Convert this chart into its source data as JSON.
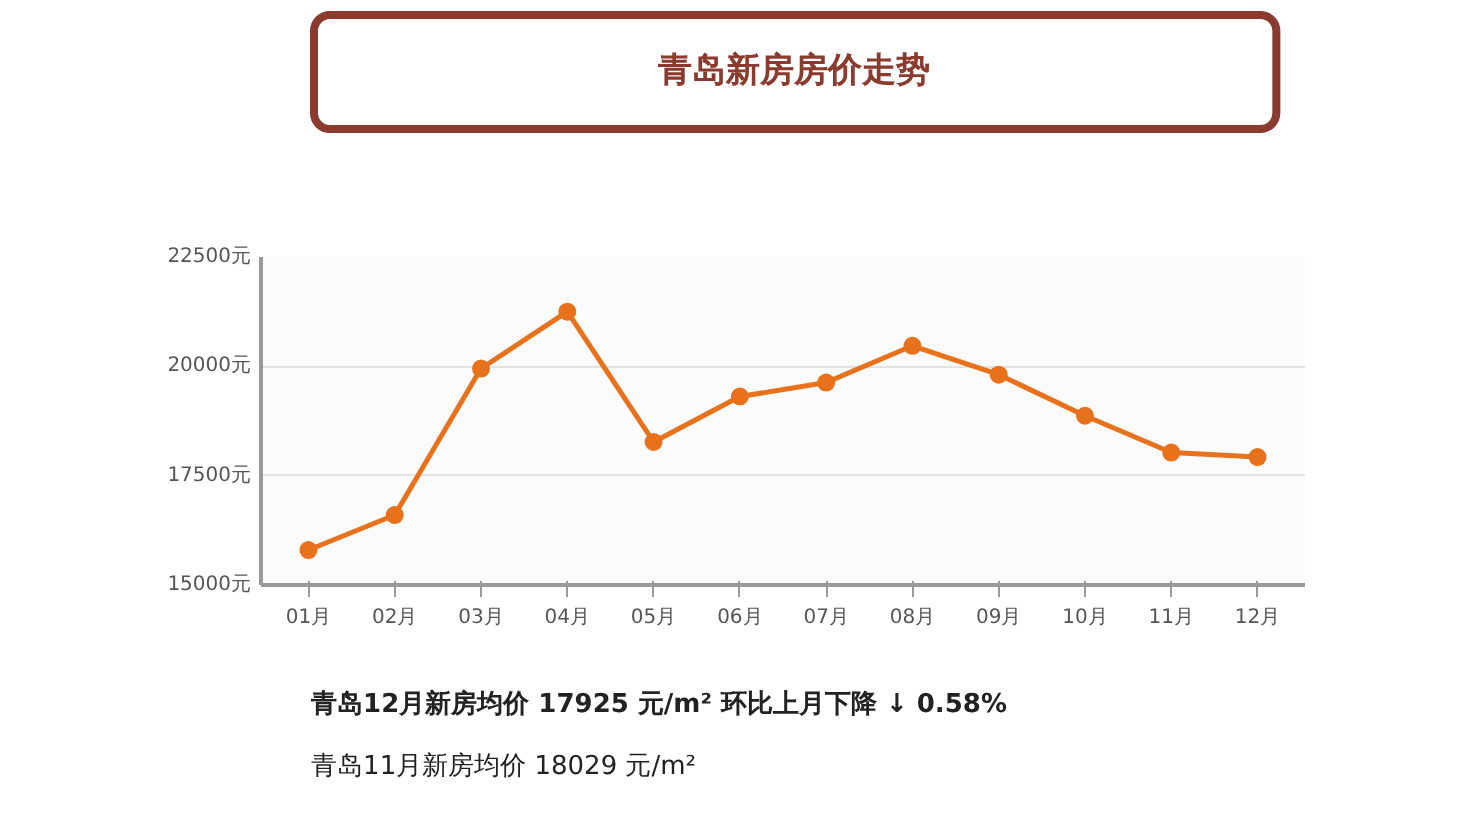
{
  "chart_data": {
    "type": "line",
    "title": "青岛新房房价走势",
    "categories": [
      "01月",
      "02月",
      "03月",
      "04月",
      "05月",
      "06月",
      "07月",
      "08月",
      "09月",
      "10月",
      "11月",
      "12月"
    ],
    "series": [
      {
        "color": "#e8711c",
        "values": [
          15800,
          16600,
          19950,
          21250,
          18270,
          19310,
          19630,
          20470,
          19810,
          18870,
          18029,
          17925
        ]
      }
    ],
    "ylim": [
      15000,
      22500
    ],
    "yticks": [
      {
        "value": 15000,
        "label": "15000元"
      },
      {
        "value": 17500,
        "label": "17500元"
      },
      {
        "value": 20000,
        "label": "20000元"
      },
      {
        "value": 22500,
        "label": "22500元"
      }
    ],
    "grid": "y",
    "marker": "circle",
    "line_style": "solid",
    "annotations": [
      "青岛12月新房均价 17925 元/m² 环比上月下降 ↓ 0.58%",
      "青岛11月新房均价 18029 元/m²"
    ]
  }
}
